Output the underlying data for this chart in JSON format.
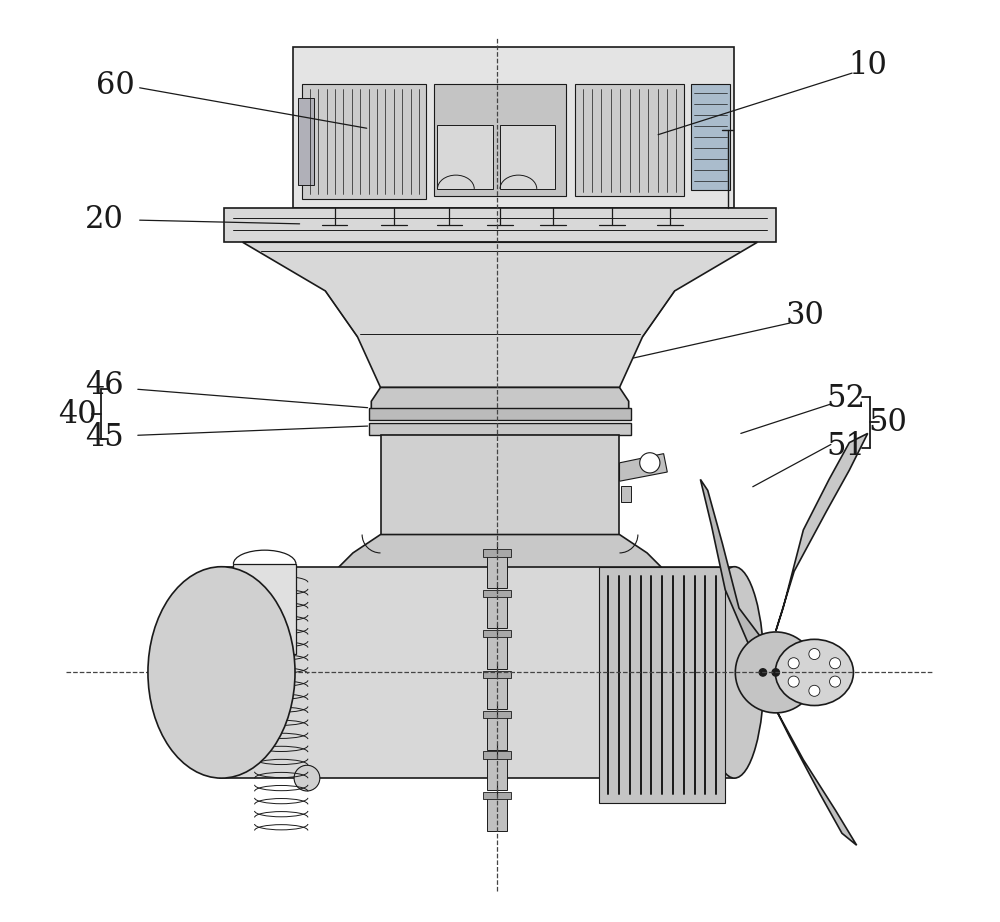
{
  "background_color": "#ffffff",
  "line_color": "#1a1a1a",
  "label_color": "#1a1a1a",
  "label_fontsize": 22,
  "fig_width": 10.0,
  "fig_height": 9.22
}
